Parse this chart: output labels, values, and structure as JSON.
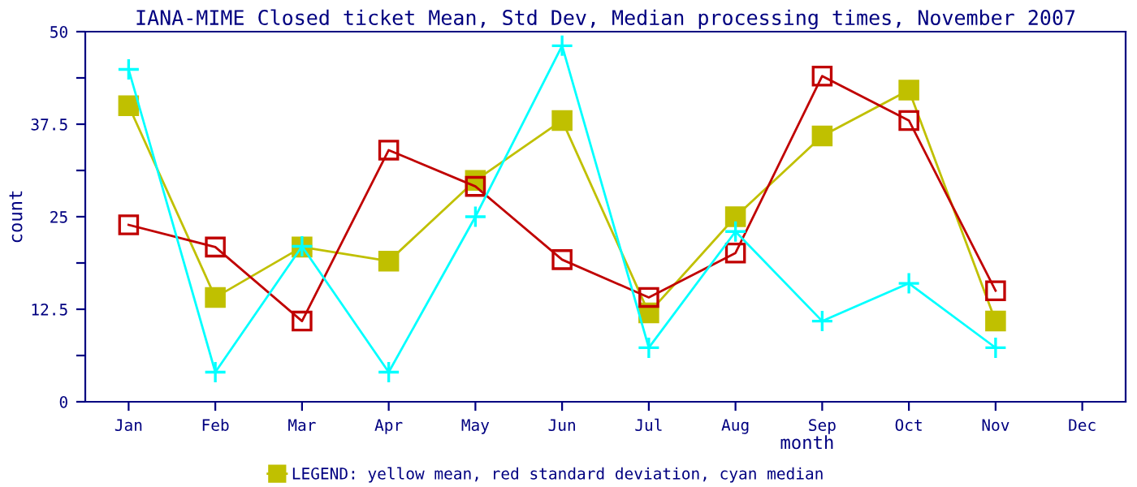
{
  "chart_data": {
    "type": "line",
    "title": "IANA-MIME Closed ticket Mean, Std Dev, Median processing times, November 2007",
    "xlabel": "month",
    "ylabel": "count",
    "categories": [
      "Jan",
      "Feb",
      "Mar",
      "Apr",
      "May",
      "Jun",
      "Jul",
      "Aug",
      "Sep",
      "Oct",
      "Nov",
      "Dec"
    ],
    "series": [
      {
        "name": "LEGEND: yellow mean, red standard deviation, cyan median",
        "color": "#c0c000",
        "marker": "square",
        "values": [
          40,
          14.1,
          20.9,
          19,
          29.9,
          38,
          12,
          25,
          35.9,
          42.1,
          10.9,
          null
        ]
      },
      {
        "color": "#c00000",
        "marker": "square_open",
        "values": [
          23.9,
          20.9,
          10.9,
          34,
          29.1,
          19.2,
          14.1,
          20.1,
          44,
          38,
          15,
          null
        ]
      },
      {
        "color": "#00ffff",
        "marker": "cross",
        "values": [
          44.9,
          4,
          21,
          4,
          25,
          48.1,
          7.3,
          23,
          10.9,
          16,
          7.3,
          null
        ]
      }
    ],
    "ylim": [
      0,
      50
    ],
    "yticks": [
      0,
      {
        "value": 6.25,
        "label": null
      },
      12.5,
      {
        "value": 18.75,
        "label": null
      },
      25,
      {
        "value": 31.25,
        "label": null
      },
      37.5,
      {
        "value": 43.75,
        "label": null
      },
      50
    ],
    "grid": false,
    "legend": "bottom"
  }
}
